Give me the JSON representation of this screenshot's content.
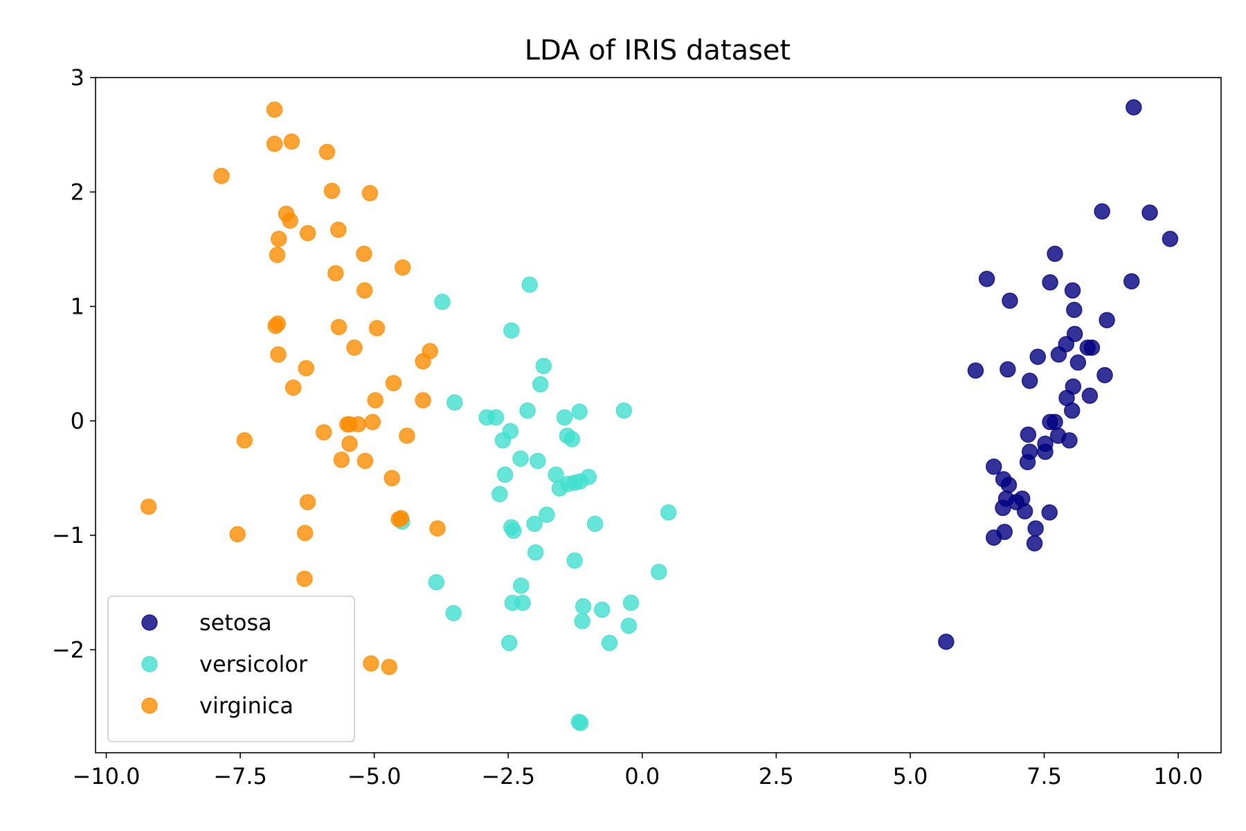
{
  "chart_data": {
    "type": "scatter",
    "title": "LDA of IRIS dataset",
    "xlabel": "",
    "ylabel": "",
    "xlim": [
      -10.2,
      10.8
    ],
    "ylim": [
      -2.9,
      3.0
    ],
    "xticks": [
      -10.0,
      -7.5,
      -5.0,
      -2.5,
      0.0,
      2.5,
      5.0,
      7.5,
      10.0
    ],
    "xtick_labels": [
      "−10.0",
      "−7.5",
      "−5.0",
      "−2.5",
      "0.0",
      "2.5",
      "5.0",
      "7.5",
      "10.0"
    ],
    "yticks": [
      3,
      2,
      1,
      0,
      -1,
      -2
    ],
    "ytick_labels": [
      "3",
      "2",
      "1",
      "0",
      "−1",
      "−2"
    ],
    "grid": false,
    "legend_position": "lower-left",
    "series": [
      {
        "name": "setosa",
        "color": "#000080",
        "points": [
          [
            9.17,
            2.74
          ],
          [
            8.58,
            1.83
          ],
          [
            9.47,
            1.82
          ],
          [
            9.85,
            1.59
          ],
          [
            7.7,
            1.46
          ],
          [
            6.43,
            1.24
          ],
          [
            9.13,
            1.22
          ],
          [
            7.61,
            1.21
          ],
          [
            8.03,
            1.14
          ],
          [
            6.86,
            1.05
          ],
          [
            8.06,
            0.97
          ],
          [
            8.67,
            0.88
          ],
          [
            8.07,
            0.76
          ],
          [
            7.91,
            0.67
          ],
          [
            8.31,
            0.64
          ],
          [
            8.39,
            0.64
          ],
          [
            7.38,
            0.56
          ],
          [
            7.77,
            0.58
          ],
          [
            8.13,
            0.51
          ],
          [
            6.22,
            0.44
          ],
          [
            6.82,
            0.45
          ],
          [
            8.63,
            0.4
          ],
          [
            7.23,
            0.35
          ],
          [
            8.04,
            0.3
          ],
          [
            7.92,
            0.2
          ],
          [
            8.35,
            0.22
          ],
          [
            8.02,
            0.09
          ],
          [
            7.61,
            -0.01
          ],
          [
            7.7,
            -0.01
          ],
          [
            7.76,
            -0.13
          ],
          [
            7.2,
            -0.12
          ],
          [
            7.52,
            -0.2
          ],
          [
            7.97,
            -0.17
          ],
          [
            7.23,
            -0.27
          ],
          [
            7.52,
            -0.27
          ],
          [
            7.19,
            -0.36
          ],
          [
            6.56,
            -0.4
          ],
          [
            6.74,
            -0.51
          ],
          [
            6.84,
            -0.56
          ],
          [
            6.79,
            -0.68
          ],
          [
            6.98,
            -0.71
          ],
          [
            7.09,
            -0.68
          ],
          [
            6.73,
            -0.76
          ],
          [
            7.14,
            -0.79
          ],
          [
            7.6,
            -0.8
          ],
          [
            7.34,
            -0.94
          ],
          [
            6.76,
            -0.97
          ],
          [
            6.56,
            -1.02
          ],
          [
            7.32,
            -1.07
          ],
          [
            5.67,
            -1.93
          ]
        ]
      },
      {
        "name": "versicolor",
        "color": "#40E0D0",
        "points": [
          [
            -2.1,
            1.19
          ],
          [
            -3.73,
            1.04
          ],
          [
            -2.44,
            0.79
          ],
          [
            -1.84,
            0.48
          ],
          [
            -1.9,
            0.32
          ],
          [
            -3.5,
            0.16
          ],
          [
            -2.14,
            0.09
          ],
          [
            -1.17,
            0.08
          ],
          [
            -0.34,
            0.09
          ],
          [
            -2.9,
            0.03
          ],
          [
            -2.73,
            0.03
          ],
          [
            -1.45,
            0.03
          ],
          [
            -2.46,
            -0.09
          ],
          [
            -2.6,
            -0.17
          ],
          [
            -1.4,
            -0.13
          ],
          [
            -1.31,
            -0.16
          ],
          [
            -2.27,
            -0.33
          ],
          [
            -1.95,
            -0.35
          ],
          [
            -1.61,
            -0.47
          ],
          [
            -2.56,
            -0.47
          ],
          [
            -1.0,
            -0.49
          ],
          [
            -1.16,
            -0.53
          ],
          [
            -1.26,
            -0.54
          ],
          [
            -1.38,
            -0.55
          ],
          [
            -1.54,
            -0.59
          ],
          [
            -2.66,
            -0.64
          ],
          [
            -1.78,
            -0.82
          ],
          [
            0.49,
            -0.8
          ],
          [
            -4.48,
            -0.88
          ],
          [
            -2.01,
            -0.9
          ],
          [
            -0.88,
            -0.9
          ],
          [
            -2.44,
            -0.93
          ],
          [
            -2.4,
            -0.96
          ],
          [
            -1.99,
            -1.15
          ],
          [
            -1.26,
            -1.22
          ],
          [
            0.31,
            -1.32
          ],
          [
            -3.84,
            -1.41
          ],
          [
            -2.26,
            -1.44
          ],
          [
            -2.42,
            -1.59
          ],
          [
            -2.23,
            -1.59
          ],
          [
            -0.21,
            -1.59
          ],
          [
            -1.1,
            -1.62
          ],
          [
            -0.75,
            -1.65
          ],
          [
            -3.52,
            -1.68
          ],
          [
            -1.12,
            -1.75
          ],
          [
            -0.25,
            -1.79
          ],
          [
            -2.48,
            -1.94
          ],
          [
            -0.61,
            -1.94
          ],
          [
            -1.18,
            -2.63
          ],
          [
            -1.15,
            -2.64
          ]
        ]
      },
      {
        "name": "virginica",
        "color": "#FF8C00",
        "points": [
          [
            -6.86,
            2.72
          ],
          [
            -6.86,
            2.42
          ],
          [
            -6.54,
            2.44
          ],
          [
            -5.88,
            2.35
          ],
          [
            -7.85,
            2.14
          ],
          [
            -5.79,
            2.01
          ],
          [
            -5.08,
            1.99
          ],
          [
            -6.64,
            1.81
          ],
          [
            -6.57,
            1.75
          ],
          [
            -5.67,
            1.67
          ],
          [
            -6.24,
            1.64
          ],
          [
            -6.78,
            1.59
          ],
          [
            -6.81,
            1.45
          ],
          [
            -5.19,
            1.46
          ],
          [
            -4.47,
            1.34
          ],
          [
            -5.72,
            1.29
          ],
          [
            -5.18,
            1.14
          ],
          [
            -6.8,
            0.85
          ],
          [
            -6.84,
            0.83
          ],
          [
            -5.66,
            0.82
          ],
          [
            -4.95,
            0.81
          ],
          [
            -5.37,
            0.64
          ],
          [
            -3.96,
            0.61
          ],
          [
            -4.09,
            0.52
          ],
          [
            -6.79,
            0.58
          ],
          [
            -6.27,
            0.46
          ],
          [
            -4.64,
            0.33
          ],
          [
            -6.51,
            0.29
          ],
          [
            -4.98,
            0.18
          ],
          [
            -4.09,
            0.18
          ],
          [
            -5.46,
            -0.03
          ],
          [
            -5.5,
            -0.03
          ],
          [
            -5.03,
            -0.01
          ],
          [
            -5.3,
            -0.03
          ],
          [
            -5.94,
            -0.1
          ],
          [
            -4.39,
            -0.13
          ],
          [
            -7.42,
            -0.17
          ],
          [
            -5.46,
            -0.2
          ],
          [
            -5.61,
            -0.34
          ],
          [
            -5.17,
            -0.35
          ],
          [
            -4.67,
            -0.5
          ],
          [
            -6.24,
            -0.71
          ],
          [
            -9.21,
            -0.75
          ],
          [
            -4.54,
            -0.86
          ],
          [
            -4.5,
            -0.85
          ],
          [
            -7.55,
            -0.99
          ],
          [
            -6.29,
            -0.98
          ],
          [
            -3.82,
            -0.94
          ],
          [
            -6.3,
            -1.38
          ],
          [
            -5.06,
            -2.12
          ],
          [
            -4.72,
            -2.15
          ]
        ]
      }
    ]
  }
}
